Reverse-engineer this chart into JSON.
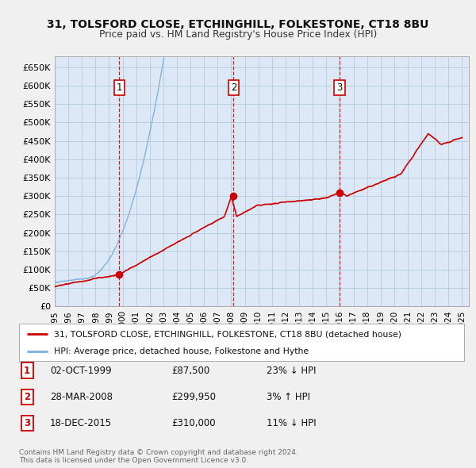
{
  "title_line1": "31, TOLSFORD CLOSE, ETCHINGHILL, FOLKESTONE, CT18 8BU",
  "title_line2": "Price paid vs. HM Land Registry's House Price Index (HPI)",
  "ylabel_ticks": [
    "£0",
    "£50K",
    "£100K",
    "£150K",
    "£200K",
    "£250K",
    "£300K",
    "£350K",
    "£400K",
    "£450K",
    "£500K",
    "£550K",
    "£600K",
    "£650K"
  ],
  "ytick_values": [
    0,
    50000,
    100000,
    150000,
    200000,
    250000,
    300000,
    350000,
    400000,
    450000,
    500000,
    550000,
    600000,
    650000
  ],
  "ylim": [
    0,
    680000
  ],
  "xlim_start": 1995.0,
  "xlim_end": 2025.5,
  "background_color": "#f0f0f0",
  "plot_bg_color": "#dce8f5",
  "grid_color": "#b8cfe0",
  "hpi_line_color": "#7ab0d8",
  "price_line_color": "#cc0000",
  "vline_color": "#cc0000",
  "sale_points": [
    {
      "year": 1999.75,
      "price": 87500,
      "label": "1"
    },
    {
      "year": 2008.17,
      "price": 299950,
      "label": "2"
    },
    {
      "year": 2015.97,
      "price": 310000,
      "label": "3"
    }
  ],
  "table_rows": [
    {
      "num": "1",
      "date": "02-OCT-1999",
      "price": "£87,500",
      "hpi": "23% ↓ HPI"
    },
    {
      "num": "2",
      "date": "28-MAR-2008",
      "price": "£299,950",
      "hpi": "3% ↑ HPI"
    },
    {
      "num": "3",
      "date": "18-DEC-2015",
      "price": "£310,000",
      "hpi": "11% ↓ HPI"
    }
  ],
  "legend_line1": "31, TOLSFORD CLOSE, ETCHINGHILL, FOLKESTONE, CT18 8BU (detached house)",
  "legend_line2": "HPI: Average price, detached house, Folkestone and Hythe",
  "footer_line1": "Contains HM Land Registry data © Crown copyright and database right 2024.",
  "footer_line2": "This data is licensed under the Open Government Licence v3.0.",
  "xtick_years": [
    1995,
    1996,
    1997,
    1998,
    1999,
    2000,
    2001,
    2002,
    2003,
    2004,
    2005,
    2006,
    2007,
    2008,
    2009,
    2010,
    2011,
    2012,
    2013,
    2014,
    2015,
    2016,
    2017,
    2018,
    2019,
    2020,
    2021,
    2022,
    2023,
    2024,
    2025
  ]
}
